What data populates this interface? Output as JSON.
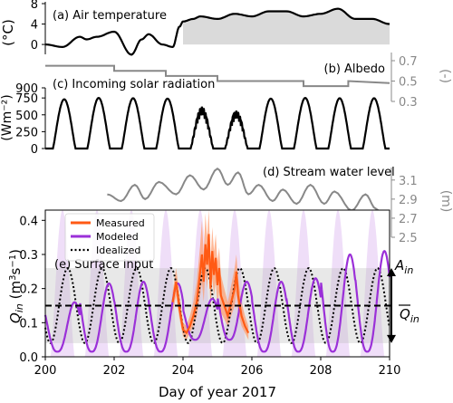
{
  "chart_data": [
    {
      "panel": "a",
      "type": "area",
      "label": "(a) Air temperature",
      "ylabel": "(°C)",
      "yticks": [
        0,
        4,
        8
      ],
      "ylim": [
        -3,
        8
      ],
      "x": [
        200.0,
        200.5,
        201.0,
        201.2,
        201.5,
        202.0,
        202.5,
        202.8,
        203.0,
        203.4,
        203.7,
        203.9,
        204.0,
        204.3,
        204.5,
        205.0,
        205.5,
        206.0,
        206.5,
        207.0,
        207.5,
        208.0,
        208.5,
        209.0,
        209.5,
        210.0
      ],
      "y": [
        0.0,
        -0.5,
        1.5,
        1.0,
        1.5,
        2.5,
        -2.0,
        1.0,
        2.0,
        0.0,
        -0.5,
        3.5,
        4.5,
        5.0,
        5.5,
        5.0,
        6.0,
        5.5,
        6.5,
        6.5,
        5.5,
        6.0,
        7.0,
        5.0,
        5.0,
        4.0
      ],
      "shading": {
        "from_x": 204.0,
        "baseline": 0,
        "color": "#dadada"
      }
    },
    {
      "panel": "b",
      "type": "line",
      "label": "(b) Albedo",
      "ylabel": "(-)",
      "yticks": [
        0.3,
        0.5,
        0.7
      ],
      "ylim": [
        0.3,
        0.8
      ],
      "color": "#888888",
      "x": [
        200.0,
        202.0,
        202.0,
        203.5,
        203.5,
        205.0,
        205.0,
        207.5,
        207.5,
        208.8,
        208.8,
        210.0
      ],
      "y": [
        0.65,
        0.65,
        0.6,
        0.6,
        0.55,
        0.55,
        0.5,
        0.5,
        0.45,
        0.45,
        0.5,
        0.48
      ]
    },
    {
      "panel": "c",
      "type": "line",
      "label": "(c) Incoming solar radiation",
      "ylabel": "(Wm⁻²)",
      "yticks": [
        0,
        250,
        500,
        750,
        900
      ],
      "ylim": [
        0,
        900
      ],
      "daily_peaks": [
        {
          "day": 200,
          "peak": 730
        },
        {
          "day": 201,
          "peak": 750
        },
        {
          "day": 202,
          "peak": 745
        },
        {
          "day": 203,
          "peak": 740
        },
        {
          "day": 204,
          "peak": 620
        },
        {
          "day": 205,
          "peak": 560
        },
        {
          "day": 206,
          "peak": 740
        },
        {
          "day": 207,
          "peak": 750
        },
        {
          "day": 208,
          "peak": 745
        },
        {
          "day": 209,
          "peak": 745
        }
      ]
    },
    {
      "panel": "d",
      "type": "line",
      "label": "(d) Stream water level",
      "ylabel": "(m)",
      "yticks": [
        2.5,
        2.7,
        2.9,
        3.1
      ],
      "ylim": [
        2.5,
        3.25
      ],
      "color": "#888888",
      "x": [
        201.8,
        202.2,
        202.6,
        202.9,
        203.3,
        203.8,
        204.2,
        204.6,
        205.0,
        205.3,
        205.6,
        205.9,
        206.2,
        206.6,
        206.9,
        207.3,
        207.7,
        208.1,
        208.4,
        208.9,
        209.3,
        209.6,
        210.0
      ],
      "y": [
        2.95,
        2.88,
        3.05,
        2.9,
        3.08,
        2.95,
        3.15,
        3.0,
        3.22,
        3.05,
        3.18,
        2.95,
        3.05,
        2.88,
        3.0,
        2.85,
        3.05,
        2.85,
        2.98,
        2.78,
        2.95,
        2.8,
        2.6
      ]
    },
    {
      "panel": "e",
      "type": "line",
      "label": "(e) Surface input",
      "xlabel": "Day of year 2017",
      "ylabel": "Q_in (m³s⁻¹)",
      "xlim": [
        200,
        210
      ],
      "xticks": [
        200,
        202,
        204,
        206,
        208,
        210
      ],
      "ylim": [
        0,
        0.43
      ],
      "yticks": [
        0.0,
        0.1,
        0.2,
        0.3,
        0.4
      ],
      "legend": {
        "position": "top-left",
        "entries": [
          "Measured",
          "Modeled",
          "Idealized"
        ]
      },
      "mean_line": {
        "value": 0.15,
        "label": "Q̄_in"
      },
      "amplitude_band": {
        "from": 0.04,
        "to": 0.26,
        "label": "A_in"
      },
      "series": [
        {
          "name": "Modeled",
          "color": "#9b30d8",
          "kind": "daily_cycle",
          "phase_day": 0.85,
          "sharpness": 1.3,
          "days": [
            {
              "day": 200,
              "min": 0.015,
              "max": 0.16
            },
            {
              "day": 201,
              "min": 0.015,
              "max": 0.215
            },
            {
              "day": 202,
              "min": 0.015,
              "max": 0.22
            },
            {
              "day": 203,
              "min": 0.015,
              "max": 0.215
            },
            {
              "day": 204,
              "min": 0.05,
              "max": 0.17
            },
            {
              "day": 205,
              "min": 0.05,
              "max": 0.22
            },
            {
              "day": 206,
              "min": 0.015,
              "max": 0.22
            },
            {
              "day": 207,
              "min": 0.015,
              "max": 0.23
            },
            {
              "day": 208,
              "min": 0.015,
              "max": 0.3
            },
            {
              "day": 209,
              "min": 0.015,
              "max": 0.31
            }
          ]
        },
        {
          "name": "Idealized",
          "color": "#000000",
          "kind": "sinusoid",
          "mean": 0.15,
          "amplitude": 0.11,
          "period_days": 1,
          "peak_phase_day": 0.65
        },
        {
          "name": "Measured",
          "color": "#ff5a14",
          "x": [
            203.7,
            203.8,
            203.9,
            204.0,
            204.1,
            204.2,
            204.3,
            204.4,
            204.5,
            204.55,
            204.6,
            204.65,
            204.7,
            204.75,
            204.8,
            204.85,
            204.9,
            204.95,
            205.0,
            205.05,
            205.1,
            205.2,
            205.3,
            205.4,
            205.5,
            205.55,
            205.6,
            205.7,
            205.8,
            205.9
          ],
          "y": [
            0.16,
            0.22,
            0.14,
            0.08,
            0.07,
            0.09,
            0.12,
            0.16,
            0.25,
            0.3,
            0.22,
            0.33,
            0.27,
            0.36,
            0.2,
            0.31,
            0.24,
            0.29,
            0.21,
            0.26,
            0.18,
            0.15,
            0.12,
            0.16,
            0.2,
            0.25,
            0.18,
            0.12,
            0.09,
            0.07
          ],
          "upper": [
            0.19,
            0.26,
            0.18,
            0.1,
            0.09,
            0.12,
            0.16,
            0.22,
            0.33,
            0.4,
            0.3,
            0.42,
            0.35,
            0.43,
            0.28,
            0.38,
            0.31,
            0.36,
            0.28,
            0.32,
            0.24,
            0.2,
            0.16,
            0.21,
            0.26,
            0.3,
            0.23,
            0.16,
            0.12,
            0.09
          ],
          "lower": [
            0.13,
            0.18,
            0.11,
            0.06,
            0.05,
            0.07,
            0.09,
            0.12,
            0.18,
            0.22,
            0.16,
            0.25,
            0.2,
            0.27,
            0.14,
            0.23,
            0.18,
            0.22,
            0.15,
            0.19,
            0.13,
            0.11,
            0.09,
            0.12,
            0.15,
            0.19,
            0.13,
            0.09,
            0.07,
            0.05
          ]
        }
      ],
      "background_daily_band": {
        "color": "#ecd8f7",
        "peak_value": 0.43
      }
    }
  ]
}
